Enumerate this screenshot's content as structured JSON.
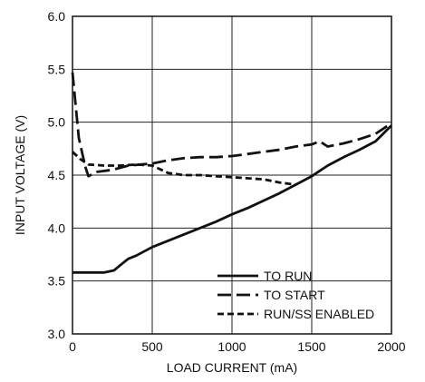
{
  "chart_data": {
    "type": "line",
    "title": "",
    "xlabel": "LOAD CURRENT (mA)",
    "ylabel": "INPUT VOLTAGE (V)",
    "xlim": [
      0,
      2000
    ],
    "ylim": [
      3.0,
      6.0
    ],
    "x_ticks": [
      "0",
      "500",
      "1000",
      "1500",
      "2000"
    ],
    "y_ticks": [
      "3.0",
      "3.5",
      "4.0",
      "4.5",
      "5.0",
      "5.5",
      "6.0"
    ],
    "grid": true,
    "legend_position": "bottom-right",
    "series": [
      {
        "name": "TO RUN",
        "dash": "solid",
        "points": [
          [
            0,
            3.58
          ],
          [
            100,
            3.58
          ],
          [
            200,
            3.58
          ],
          [
            260,
            3.6
          ],
          [
            300,
            3.65
          ],
          [
            350,
            3.71
          ],
          [
            400,
            3.74
          ],
          [
            500,
            3.82
          ],
          [
            600,
            3.88
          ],
          [
            700,
            3.94
          ],
          [
            800,
            4.0
          ],
          [
            900,
            4.06
          ],
          [
            1000,
            4.13
          ],
          [
            1100,
            4.19
          ],
          [
            1200,
            4.26
          ],
          [
            1300,
            4.33
          ],
          [
            1400,
            4.41
          ],
          [
            1500,
            4.49
          ],
          [
            1600,
            4.59
          ],
          [
            1700,
            4.67
          ],
          [
            1800,
            4.74
          ],
          [
            1900,
            4.82
          ],
          [
            2000,
            4.97
          ]
        ]
      },
      {
        "name": "TO START",
        "dash": "long-dash",
        "points": [
          [
            0,
            5.47
          ],
          [
            40,
            4.85
          ],
          [
            80,
            4.58
          ],
          [
            100,
            4.49
          ],
          [
            150,
            4.53
          ],
          [
            250,
            4.55
          ],
          [
            350,
            4.59
          ],
          [
            500,
            4.61
          ],
          [
            600,
            4.64
          ],
          [
            700,
            4.66
          ],
          [
            800,
            4.67
          ],
          [
            900,
            4.67
          ],
          [
            1000,
            4.68
          ],
          [
            1100,
            4.7
          ],
          [
            1200,
            4.72
          ],
          [
            1300,
            4.74
          ],
          [
            1400,
            4.77
          ],
          [
            1500,
            4.79
          ],
          [
            1550,
            4.82
          ],
          [
            1600,
            4.77
          ],
          [
            1700,
            4.8
          ],
          [
            1800,
            4.84
          ],
          [
            1900,
            4.89
          ],
          [
            2000,
            4.99
          ]
        ]
      },
      {
        "name": "RUN/SS ENABLED",
        "dash": "short-dash",
        "points": [
          [
            0,
            4.72
          ],
          [
            50,
            4.65
          ],
          [
            100,
            4.6
          ],
          [
            200,
            4.59
          ],
          [
            300,
            4.59
          ],
          [
            400,
            4.6
          ],
          [
            500,
            4.59
          ],
          [
            600,
            4.52
          ],
          [
            700,
            4.5
          ],
          [
            800,
            4.5
          ],
          [
            900,
            4.49
          ],
          [
            1000,
            4.48
          ],
          [
            1100,
            4.47
          ],
          [
            1200,
            4.46
          ],
          [
            1300,
            4.43
          ],
          [
            1400,
            4.41
          ]
        ]
      }
    ]
  }
}
